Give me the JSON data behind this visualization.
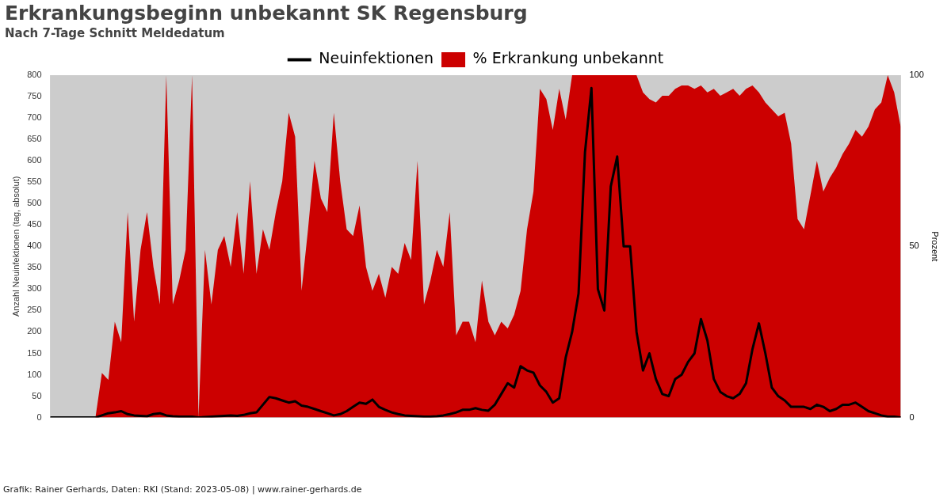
{
  "chart_data": {
    "type": "line",
    "title": "Erkrankungsbeginn unbekannt SK Regensburg",
    "subtitle": "Nach 7-Tage Schnitt Meldedatum",
    "ylabel": "Anzahl Neuinfektionen (tag, absolut)",
    "y2label": "Prozent",
    "annotations": [
      "Grafik: Rainer Gerhards, Daten: RKI (Stand: 2023-05-08) | www.rainer-gerhards.de"
    ],
    "categories": [
      null,
      null,
      null,
      null,
      null,
      null,
      null,
      null,
      null,
      null,
      null,
      null,
      null,
      null,
      null,
      null,
      null,
      null,
      null,
      null,
      null,
      null,
      null,
      null,
      null,
      null,
      null,
      null,
      null,
      null,
      null,
      null,
      null,
      null,
      null,
      null,
      null,
      null,
      null,
      null,
      null,
      null,
      null,
      null,
      null,
      null,
      null,
      null,
      null,
      null,
      null,
      null,
      null,
      null,
      null,
      null,
      null,
      null,
      null,
      null,
      null,
      null,
      null,
      null,
      null,
      null,
      null,
      null,
      null,
      null,
      null,
      null,
      null,
      null,
      null,
      null,
      null,
      null,
      null,
      null,
      null,
      null,
      null,
      null,
      null,
      null,
      null,
      null,
      null,
      null,
      null,
      null,
      null,
      null,
      null,
      null,
      null,
      null,
      null,
      null,
      null,
      null,
      null,
      null,
      null,
      null,
      null,
      null,
      null,
      null,
      null,
      null,
      null,
      null,
      null,
      null,
      null,
      null,
      null,
      null,
      null,
      null,
      null,
      null,
      null,
      null,
      null,
      null,
      null,
      null,
      null,
      null,
      null
    ],
    "series": [
      {
        "name": "Neuinfektionen",
        "color": "#000000",
        "values": [
          0,
          0,
          0,
          0,
          0,
          0,
          0,
          0,
          5,
          10,
          12,
          15,
          8,
          5,
          4,
          3,
          8,
          10,
          5,
          3,
          2,
          2,
          2,
          0,
          1,
          2,
          3,
          4,
          5,
          4,
          6,
          10,
          12,
          30,
          48,
          45,
          40,
          35,
          38,
          28,
          25,
          20,
          15,
          10,
          5,
          8,
          15,
          25,
          35,
          32,
          42,
          25,
          18,
          12,
          8,
          5,
          4,
          3,
          2,
          2,
          3,
          5,
          8,
          12,
          18,
          18,
          22,
          18,
          16,
          30,
          55,
          80,
          70,
          120,
          110,
          105,
          75,
          60,
          35,
          45,
          140,
          200,
          290,
          620,
          770,
          300,
          250,
          540,
          610,
          400,
          400,
          200,
          110,
          150,
          90,
          55,
          50,
          90,
          100,
          130,
          150,
          230,
          180,
          90,
          60,
          50,
          45,
          55,
          80,
          160,
          220,
          150,
          70,
          50,
          40,
          25,
          25,
          25,
          20,
          30,
          25,
          15,
          20,
          30,
          30,
          35,
          25,
          15,
          10,
          5,
          2,
          2,
          0
        ]
      },
      {
        "name": "% Erkrankung unbekannt",
        "type": "area",
        "axis": "y2",
        "color": "#cc0000",
        "values": [
          0,
          0,
          0,
          0,
          0,
          0,
          0,
          0,
          13,
          11,
          28,
          22,
          60,
          28,
          49,
          60,
          44,
          33,
          100,
          33,
          40,
          49,
          100,
          0,
          49,
          33,
          49,
          53,
          44,
          60,
          42,
          69,
          42,
          55,
          49,
          60,
          69,
          89,
          82,
          37,
          55,
          75,
          64,
          60,
          89,
          69,
          55,
          53,
          62,
          44,
          37,
          42,
          35,
          44,
          42,
          51,
          46,
          75,
          33,
          40,
          49,
          44,
          60,
          24,
          28,
          28,
          22,
          40,
          28,
          24,
          28,
          26,
          30,
          37,
          55,
          66,
          96,
          93,
          84,
          96,
          87,
          100,
          100,
          100,
          100,
          100,
          100,
          100,
          100,
          100,
          100,
          100,
          95,
          93,
          92,
          94,
          94,
          96,
          97,
          97,
          96,
          97,
          95,
          96,
          94,
          95,
          96,
          94,
          96,
          97,
          95,
          92,
          90,
          88,
          89,
          80,
          58,
          55,
          65,
          75,
          66,
          70,
          73,
          77,
          80,
          84,
          82,
          85,
          90,
          92,
          100,
          95,
          85
        ]
      }
    ],
    "ylim": [
      0,
      800
    ],
    "yticks": [
      0,
      50,
      100,
      150,
      200,
      250,
      300,
      350,
      400,
      450,
      500,
      550,
      600,
      650,
      700,
      750,
      800
    ],
    "y2lim": [
      0,
      100
    ],
    "y2ticks": [
      0,
      50,
      100
    ],
    "legend": "top",
    "marker": "none",
    "grid": false
  }
}
